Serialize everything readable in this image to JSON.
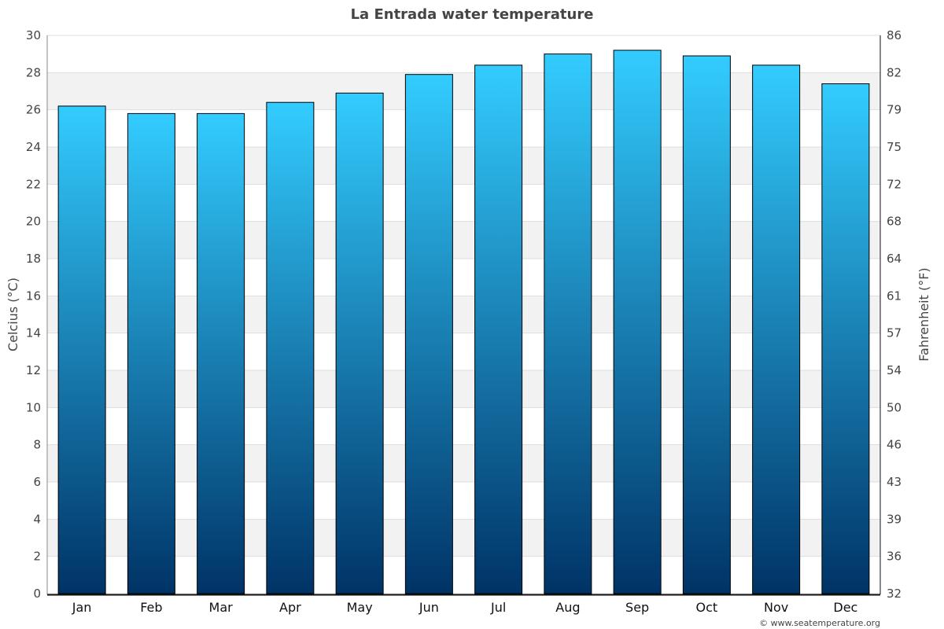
{
  "chart_data": {
    "type": "bar",
    "title": "La Entrada water temperature",
    "ylabel": "Celcius (°C)",
    "y2label": "Fahrenheit (°F)",
    "ylim": [
      0,
      30
    ],
    "y2lim": [
      32,
      86
    ],
    "yticks": [
      0,
      2,
      4,
      6,
      8,
      10,
      12,
      14,
      16,
      18,
      20,
      22,
      24,
      26,
      28,
      30
    ],
    "y2ticks": [
      "32",
      "36",
      "39",
      "43",
      "46",
      "50",
      "54",
      "57",
      "61",
      "64",
      "68",
      "72",
      "75",
      "79",
      "82",
      "86"
    ],
    "categories": [
      "Jan",
      "Feb",
      "Mar",
      "Apr",
      "May",
      "Jun",
      "Jul",
      "Aug",
      "Sep",
      "Oct",
      "Nov",
      "Dec"
    ],
    "values": [
      26.2,
      25.8,
      25.8,
      26.4,
      26.9,
      27.9,
      28.4,
      29.0,
      29.2,
      28.9,
      28.4,
      27.4
    ],
    "grid": true,
    "colors": {
      "bar_top": "#33ccff",
      "bar_bottom": "#003366",
      "band": "#f2f2f2"
    }
  },
  "credit": "© www.seatemperature.org"
}
